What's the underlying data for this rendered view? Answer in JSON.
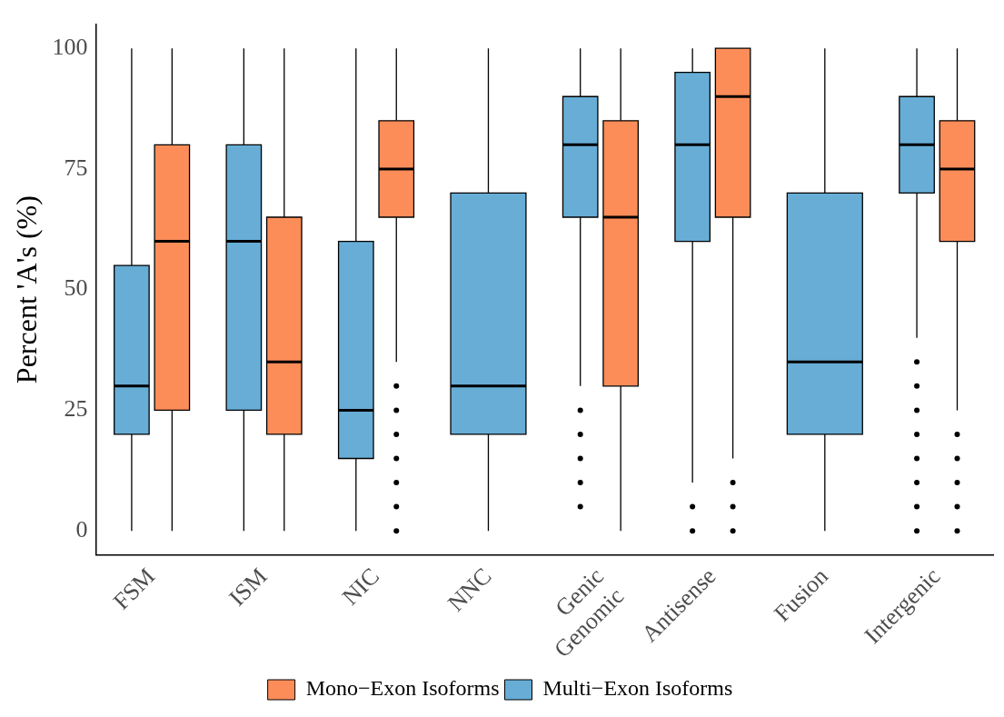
{
  "chart_data": {
    "type": "box",
    "ylabel": "Percent 'A's (%)",
    "categories": [
      "FSM",
      "ISM",
      "NIC",
      "NNC",
      "Genic\nGenomic",
      "Antisense",
      "Fusion",
      "Intergenic"
    ],
    "series": [
      {
        "name": "Multi−Exon Isoforms",
        "color": "#67add6",
        "boxes": [
          {
            "low": 0,
            "q1": 20,
            "median": 30,
            "q3": 55,
            "high": 100
          },
          {
            "low": 0,
            "q1": 25,
            "median": 60,
            "q3": 80,
            "high": 100
          },
          {
            "low": 0,
            "q1": 15,
            "median": 25,
            "q3": 60,
            "high": 100
          },
          {
            "low": 0,
            "q1": 20,
            "median": 30,
            "q3": 70,
            "high": 100
          },
          {
            "low": 30,
            "q1": 65,
            "median": 80,
            "q3": 90,
            "high": 100,
            "outliers": [
              5,
              10,
              15,
              20,
              25
            ]
          },
          {
            "low": 10,
            "q1": 60,
            "median": 80,
            "q3": 95,
            "high": 100,
            "outliers": [
              0,
              5
            ]
          },
          {
            "low": 0,
            "q1": 20,
            "median": 35,
            "q3": 70,
            "high": 100
          },
          {
            "low": 40,
            "q1": 70,
            "median": 80,
            "q3": 90,
            "high": 100,
            "outliers": [
              0,
              5,
              10,
              15,
              20,
              25,
              30,
              35
            ]
          }
        ]
      },
      {
        "name": "Mono−Exon Isoforms",
        "color": "#fc8d59",
        "boxes": [
          {
            "low": 0,
            "q1": 25,
            "median": 60,
            "q3": 80,
            "high": 100
          },
          {
            "low": 0,
            "q1": 20,
            "median": 35,
            "q3": 65,
            "high": 100
          },
          {
            "low": 35,
            "q1": 65,
            "median": 75,
            "q3": 85,
            "high": 100,
            "outliers": [
              0,
              5,
              10,
              15,
              20,
              25,
              30
            ]
          },
          null,
          {
            "low": 0,
            "q1": 30,
            "median": 65,
            "q3": 85,
            "high": 100
          },
          {
            "low": 15,
            "q1": 65,
            "median": 90,
            "q3": 100,
            "high": 100,
            "outliers": [
              0,
              5,
              10
            ]
          },
          null,
          {
            "low": 25,
            "q1": 60,
            "median": 75,
            "q3": 85,
            "high": 100,
            "outliers": [
              0,
              5,
              10,
              15,
              20
            ]
          }
        ]
      }
    ],
    "ylim": [
      -5,
      105
    ],
    "yticks": [
      0,
      25,
      50,
      75,
      100
    ],
    "grid": false,
    "legend": "bottom"
  }
}
